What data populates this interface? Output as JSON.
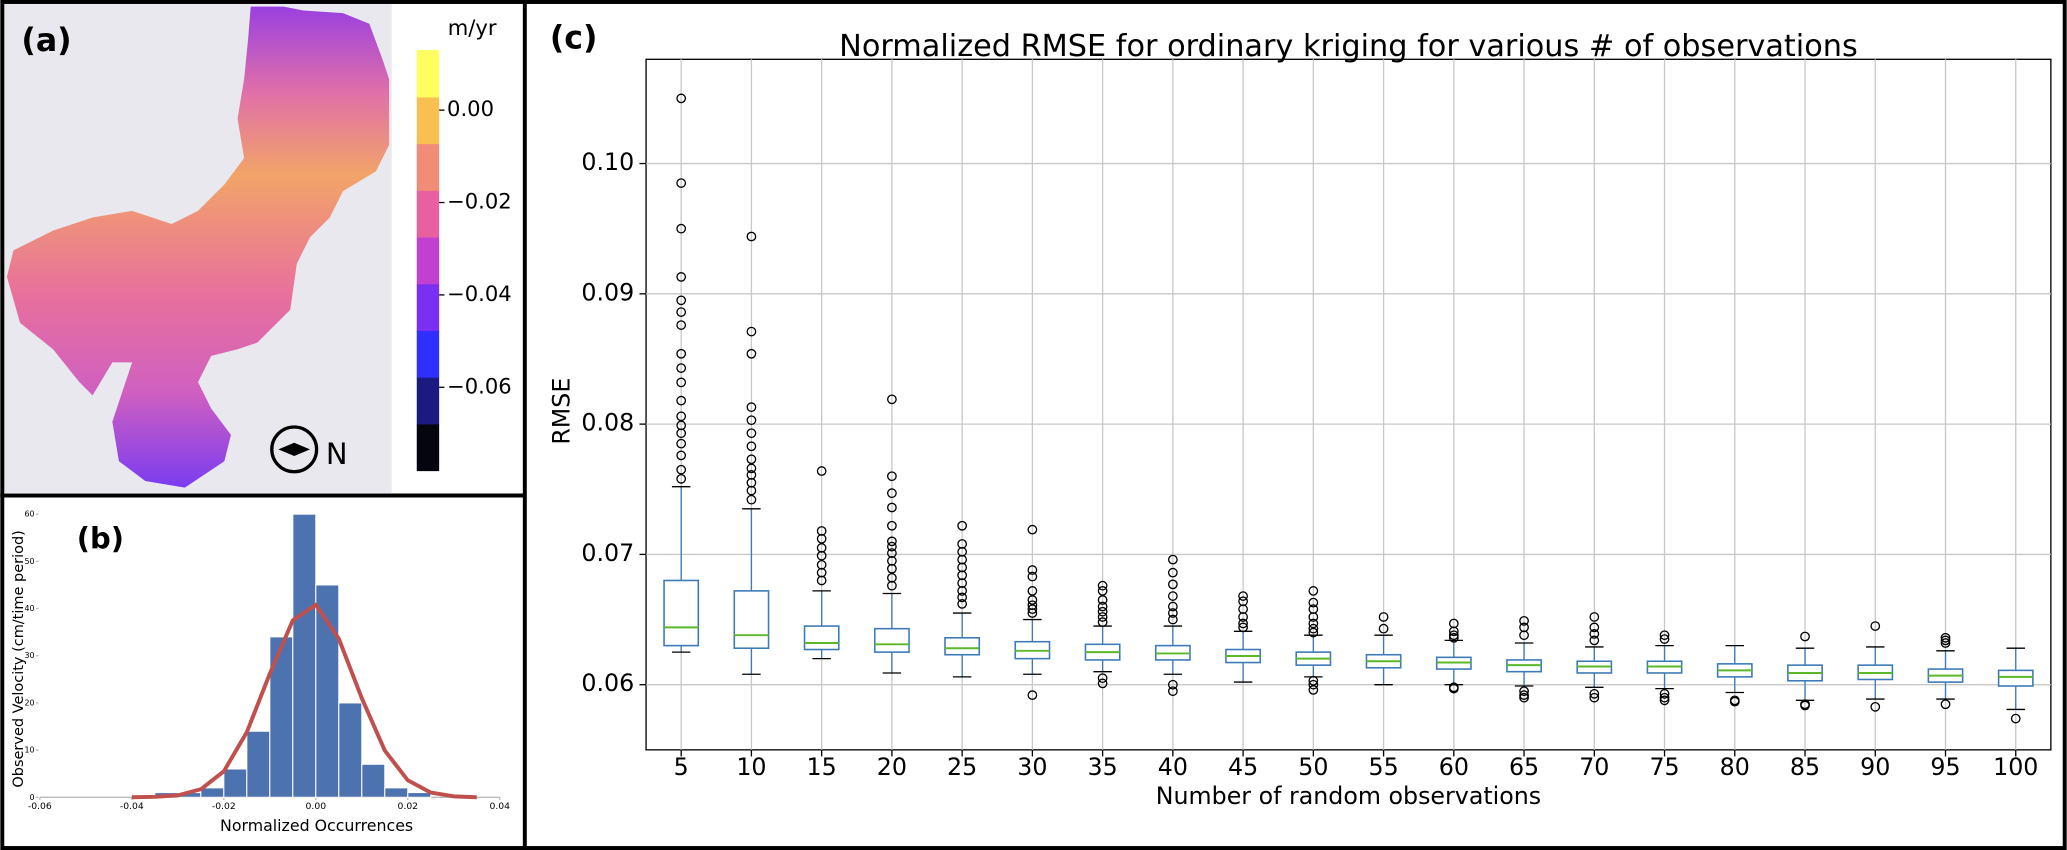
{
  "chart_data": [
    {
      "type": "map",
      "panel_label": "(a)",
      "compass_label": "N",
      "colorbar": {
        "label": "m/yr",
        "lim": [
          -0.078,
          0.013
        ],
        "colors": [
          "#050510",
          "#1a1a80",
          "#2f2fff",
          "#7a30f0",
          "#c040d0",
          "#e8609f",
          "#f08c78",
          "#f8c050",
          "#ffff60"
        ],
        "ticks": [
          {
            "value": 0,
            "label": "0.00"
          },
          {
            "value": -0.02,
            "label": "−0.02"
          },
          {
            "value": -0.04,
            "label": "−0.04"
          },
          {
            "value": -0.06,
            "label": "−0.06"
          }
        ]
      }
    },
    {
      "type": "histogram",
      "panel_label": "(b)",
      "x_label": "Normalized Occurrences",
      "y_label": "Observed Velocity (cm/time period)",
      "bins": [
        -0.035,
        -0.03,
        -0.025,
        -0.02,
        -0.015,
        -0.01,
        -0.005,
        0,
        0.005,
        0.01,
        0.015,
        0.02,
        0.025
      ],
      "counts": [
        1,
        1,
        2,
        6,
        14,
        34,
        60,
        45,
        20,
        7,
        2,
        1
      ],
      "color": "#4c72b0",
      "curve_x": [
        -0.04,
        -0.035,
        -0.03,
        -0.025,
        -0.02,
        -0.015,
        -0.01,
        -0.005,
        0,
        0.005,
        0.01,
        0.015,
        0.02,
        0.025,
        0.03,
        0.035
      ],
      "curve_values": [
        0,
        0.1,
        0.4,
        1.7,
        5.5,
        13.8,
        26.2,
        37.5,
        40.8,
        33.6,
        21.0,
        9.9,
        3.6,
        1.0,
        0.2,
        0
      ],
      "curve_color": "#c0504d",
      "xlim": [
        -0.06,
        0.04
      ],
      "xticks": [
        -0.06,
        -0.04,
        -0.02,
        {
          "value": 0,
          "label": "0.00"
        },
        0.02,
        0.04
      ],
      "ylim": [
        0,
        62
      ],
      "yticks": [
        0,
        10,
        20,
        30,
        40,
        50,
        60
      ]
    },
    {
      "type": "box",
      "panel_label": "(c)",
      "title": "Normalized RMSE for ordinary kriging for various # of observations",
      "x_label": "Number of random observations",
      "y_label": "RMSE",
      "categories": [
        5,
        10,
        15,
        20,
        25,
        30,
        35,
        40,
        45,
        50,
        55,
        60,
        65,
        70,
        75,
        80,
        85,
        90,
        95,
        100
      ],
      "box_color": "#3d7ab8",
      "median_color": "#5cb82a",
      "grid": true,
      "ylim": [
        0.055,
        0.108
      ],
      "yticks": [
        0.06,
        0.07,
        0.08,
        0.09,
        {
          "value": 0.1,
          "label": "0.10"
        }
      ],
      "boxes": [
        {
          "whisker_low": 0.0625,
          "q1": 0.063,
          "median": 0.0644,
          "q3": 0.068,
          "whisker_high": 0.0752,
          "outliers": [
            0.105,
            0.0985,
            0.095,
            0.0913,
            0.0895,
            0.0886,
            0.0876,
            0.0854,
            0.0843,
            0.0832,
            0.0818,
            0.0806,
            0.0799,
            0.0793,
            0.0785,
            0.0776,
            0.0765,
            0.0758
          ]
        },
        {
          "whisker_low": 0.0608,
          "q1": 0.0628,
          "median": 0.0638,
          "q3": 0.0672,
          "whisker_high": 0.0735,
          "outliers": [
            0.0944,
            0.0871,
            0.0854,
            0.0813,
            0.0803,
            0.0793,
            0.0783,
            0.0773,
            0.0766,
            0.0761,
            0.0755,
            0.0749,
            0.0742
          ]
        },
        {
          "whisker_low": 0.062,
          "q1": 0.0627,
          "median": 0.0632,
          "q3": 0.0645,
          "whisker_high": 0.0672,
          "outliers": [
            0.0764,
            0.0718,
            0.0712,
            0.0705,
            0.0699,
            0.0692,
            0.0686,
            0.068
          ]
        },
        {
          "whisker_low": 0.0609,
          "q1": 0.0625,
          "median": 0.0631,
          "q3": 0.0643,
          "whisker_high": 0.067,
          "outliers": [
            0.0819,
            0.076,
            0.0747,
            0.0736,
            0.0722,
            0.071,
            0.0706,
            0.0701,
            0.0695,
            0.0689,
            0.0682,
            0.0676
          ]
        },
        {
          "whisker_low": 0.0606,
          "q1": 0.0623,
          "median": 0.0628,
          "q3": 0.0636,
          "whisker_high": 0.0655,
          "outliers": [
            0.0722,
            0.0708,
            0.0702,
            0.0696,
            0.069,
            0.0684,
            0.0678,
            0.0672,
            0.0667,
            0.0662
          ]
        },
        {
          "whisker_low": 0.0608,
          "q1": 0.062,
          "median": 0.0626,
          "q3": 0.0633,
          "whisker_high": 0.065,
          "outliers": [
            0.0719,
            0.0688,
            0.0683,
            0.0672,
            0.0665,
            0.0661,
            0.0658,
            0.0655,
            0.0592
          ]
        },
        {
          "whisker_low": 0.061,
          "q1": 0.0619,
          "median": 0.0625,
          "q3": 0.0631,
          "whisker_high": 0.0645,
          "outliers": [
            0.0676,
            0.0672,
            0.0665,
            0.066,
            0.0656,
            0.0652,
            0.0648,
            0.0605,
            0.0601
          ]
        },
        {
          "whisker_low": 0.0608,
          "q1": 0.0619,
          "median": 0.0624,
          "q3": 0.063,
          "whisker_high": 0.0645,
          "outliers": [
            0.0696,
            0.0686,
            0.0677,
            0.0668,
            0.066,
            0.0655,
            0.065,
            0.06,
            0.0595
          ]
        },
        {
          "whisker_low": 0.0602,
          "q1": 0.0617,
          "median": 0.0622,
          "q3": 0.0627,
          "whisker_high": 0.0641,
          "outliers": [
            0.0668,
            0.0664,
            0.0658,
            0.0652,
            0.0647,
            0.0644
          ]
        },
        {
          "whisker_low": 0.0606,
          "q1": 0.0615,
          "median": 0.062,
          "q3": 0.0625,
          "whisker_high": 0.0638,
          "outliers": [
            0.0672,
            0.0663,
            0.0658,
            0.0652,
            0.0647,
            0.0643,
            0.064,
            0.0603,
            0.06,
            0.0596
          ]
        },
        {
          "whisker_low": 0.06,
          "q1": 0.0613,
          "median": 0.0618,
          "q3": 0.0623,
          "whisker_high": 0.0638,
          "outliers": [
            0.0652,
            0.0643
          ]
        },
        {
          "whisker_low": 0.06,
          "q1": 0.0612,
          "median": 0.0617,
          "q3": 0.0621,
          "whisker_high": 0.0634,
          "outliers": [
            0.0647,
            0.0641,
            0.0638,
            0.0636,
            0.0598,
            0.0597
          ]
        },
        {
          "whisker_low": 0.0599,
          "q1": 0.061,
          "median": 0.0615,
          "q3": 0.0619,
          "whisker_high": 0.0632,
          "outliers": [
            0.0649,
            0.0644,
            0.0638,
            0.0595,
            0.0592,
            0.059
          ]
        },
        {
          "whisker_low": 0.0598,
          "q1": 0.0609,
          "median": 0.0614,
          "q3": 0.0618,
          "whisker_high": 0.0629,
          "outliers": [
            0.0652,
            0.0644,
            0.0639,
            0.0634,
            0.0593,
            0.059
          ]
        },
        {
          "whisker_low": 0.0597,
          "q1": 0.0609,
          "median": 0.0614,
          "q3": 0.0618,
          "whisker_high": 0.063,
          "outliers": [
            0.0638,
            0.0635,
            0.0593,
            0.059,
            0.0588
          ]
        },
        {
          "whisker_low": 0.0594,
          "q1": 0.0606,
          "median": 0.0611,
          "q3": 0.0616,
          "whisker_high": 0.063,
          "outliers": [
            0.0588,
            0.0587
          ]
        },
        {
          "whisker_low": 0.0588,
          "q1": 0.0603,
          "median": 0.0609,
          "q3": 0.0615,
          "whisker_high": 0.0628,
          "outliers": [
            0.0637,
            0.0585,
            0.0584
          ]
        },
        {
          "whisker_low": 0.0589,
          "q1": 0.0604,
          "median": 0.0609,
          "q3": 0.0615,
          "whisker_high": 0.0629,
          "outliers": [
            0.0645,
            0.0583
          ]
        },
        {
          "whisker_low": 0.0589,
          "q1": 0.0602,
          "median": 0.0607,
          "q3": 0.0612,
          "whisker_high": 0.0626,
          "outliers": [
            0.0636,
            0.0634,
            0.0632,
            0.0585
          ]
        },
        {
          "whisker_low": 0.0581,
          "q1": 0.0599,
          "median": 0.0606,
          "q3": 0.0611,
          "whisker_high": 0.0628,
          "outliers": [
            0.0574
          ]
        }
      ]
    }
  ]
}
